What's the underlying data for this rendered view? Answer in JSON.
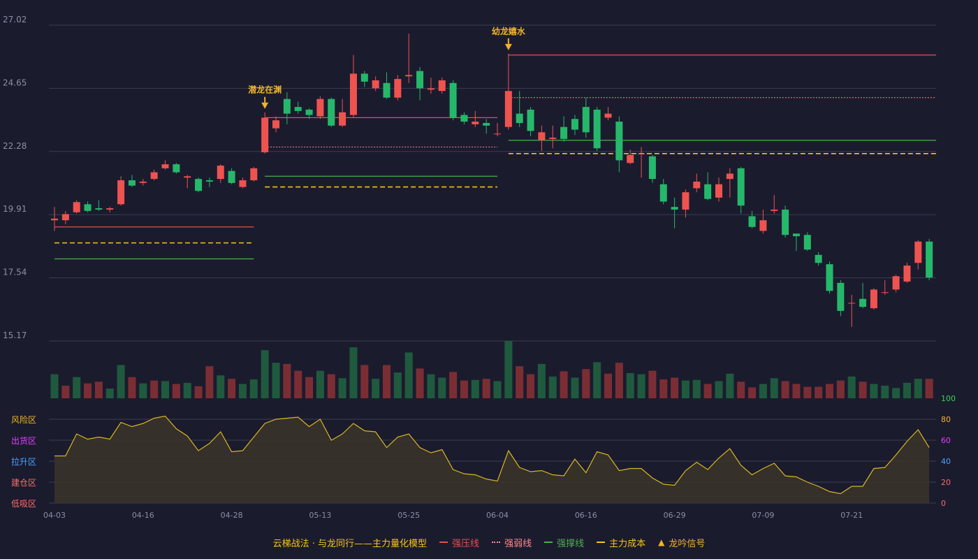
{
  "colors": {
    "background": "#1b1b2e",
    "up": "#ef5350",
    "down": "#26b86a",
    "resistance": "#e05252",
    "weak": "#ff8a8a",
    "support": "#4caf50",
    "cost": "#f5c518",
    "signal": "#f0b429",
    "axis_text": "#8c8fa3",
    "grid": "#3a3d52",
    "osc_line": "#d8b623"
  },
  "chart_data": {
    "type": "candlestick",
    "ylim": [
      15.17,
      27.02
    ],
    "price_ticks": [
      "27.02",
      "24.65",
      "22.28",
      "19.91",
      "17.54",
      "15.17"
    ],
    "date_ticks": [
      {
        "label": "04-03",
        "index": 0
      },
      {
        "label": "04-16",
        "index": 8
      },
      {
        "label": "04-28",
        "index": 16
      },
      {
        "label": "05-13",
        "index": 24
      },
      {
        "label": "05-25",
        "index": 32
      },
      {
        "label": "06-04",
        "index": 40
      },
      {
        "label": "06-16",
        "index": 48
      },
      {
        "label": "06-29",
        "index": 56
      },
      {
        "label": "07-09",
        "index": 64
      },
      {
        "label": "07-21",
        "index": 72
      }
    ],
    "candles": [
      [
        19.7,
        19.76,
        20.2,
        19.3
      ],
      [
        19.7,
        19.93,
        20.05,
        19.55
      ],
      [
        20.0,
        20.38,
        20.45,
        19.95
      ],
      [
        20.3,
        20.05,
        20.4,
        20.0
      ],
      [
        20.15,
        20.1,
        20.45,
        20.05
      ],
      [
        20.1,
        20.15,
        20.2,
        20.0
      ],
      [
        20.3,
        21.2,
        21.35,
        20.25
      ],
      [
        21.2,
        21.0,
        21.4,
        20.95
      ],
      [
        21.1,
        21.15,
        21.25,
        21.0
      ],
      [
        21.25,
        21.5,
        21.6,
        21.2
      ],
      [
        21.65,
        21.8,
        21.95,
        21.6
      ],
      [
        21.8,
        21.5,
        21.85,
        21.45
      ],
      [
        21.3,
        21.35,
        21.4,
        20.9
      ],
      [
        21.25,
        20.8,
        21.3,
        20.75
      ],
      [
        21.2,
        21.15,
        21.3,
        20.95
      ],
      [
        21.25,
        21.75,
        21.8,
        21.1
      ],
      [
        21.55,
        21.1,
        21.65,
        21.05
      ],
      [
        20.95,
        21.2,
        21.3,
        20.9
      ],
      [
        21.2,
        21.65,
        21.7,
        21.15
      ],
      [
        22.25,
        23.55,
        23.75,
        22.2
      ],
      [
        23.15,
        23.45,
        23.6,
        23.0
      ],
      [
        24.25,
        23.7,
        24.5,
        23.3
      ],
      [
        23.95,
        23.8,
        24.15,
        23.7
      ],
      [
        23.85,
        23.65,
        23.9,
        23.5
      ],
      [
        23.6,
        24.25,
        24.35,
        23.5
      ],
      [
        24.25,
        23.25,
        24.3,
        23.2
      ],
      [
        23.25,
        23.75,
        24.25,
        23.2
      ],
      [
        23.65,
        25.2,
        25.9,
        23.55
      ],
      [
        25.2,
        24.9,
        25.3,
        24.7
      ],
      [
        24.65,
        24.95,
        25.1,
        24.55
      ],
      [
        24.85,
        24.3,
        25.25,
        24.25
      ],
      [
        24.3,
        25.0,
        25.15,
        24.2
      ],
      [
        25.1,
        25.15,
        26.7,
        24.85
      ],
      [
        25.3,
        24.65,
        25.45,
        24.2
      ],
      [
        24.6,
        24.65,
        25.05,
        24.45
      ],
      [
        24.55,
        24.95,
        25.05,
        24.45
      ],
      [
        24.85,
        23.55,
        24.95,
        23.45
      ],
      [
        23.65,
        23.4,
        23.75,
        23.3
      ],
      [
        23.3,
        23.4,
        23.8,
        23.2
      ],
      [
        23.35,
        23.25,
        23.5,
        22.95
      ],
      [
        22.95,
        22.95,
        23.35,
        22.85
      ],
      [
        23.2,
        24.55,
        25.95,
        23.1
      ],
      [
        23.7,
        23.35,
        24.55,
        23.2
      ],
      [
        23.85,
        23.05,
        23.95,
        22.85
      ],
      [
        22.7,
        23.0,
        23.25,
        22.3
      ],
      [
        22.75,
        22.8,
        23.25,
        22.4
      ],
      [
        23.2,
        22.75,
        23.6,
        22.65
      ],
      [
        23.5,
        23.1,
        23.65,
        22.9
      ],
      [
        23.95,
        23.0,
        24.3,
        22.8
      ],
      [
        23.85,
        22.4,
        23.95,
        22.3
      ],
      [
        23.55,
        23.7,
        23.95,
        23.45
      ],
      [
        23.4,
        21.95,
        23.6,
        21.5
      ],
      [
        21.85,
        22.15,
        22.35,
        21.8
      ],
      [
        22.2,
        22.2,
        22.45,
        21.3
      ],
      [
        22.1,
        21.25,
        22.15,
        21.1
      ],
      [
        21.05,
        20.4,
        21.25,
        20.3
      ],
      [
        20.2,
        20.1,
        20.55,
        19.4
      ],
      [
        20.1,
        20.75,
        20.85,
        19.8
      ],
      [
        20.9,
        21.15,
        21.45,
        20.75
      ],
      [
        21.05,
        20.5,
        21.5,
        20.45
      ],
      [
        20.55,
        21.05,
        21.3,
        20.4
      ],
      [
        21.25,
        21.45,
        21.65,
        20.55
      ],
      [
        21.65,
        20.25,
        21.7,
        19.95
      ],
      [
        19.85,
        19.45,
        20.05,
        19.4
      ],
      [
        19.3,
        19.7,
        20.1,
        19.2
      ],
      [
        20.05,
        20.1,
        20.65,
        19.95
      ],
      [
        20.1,
        19.15,
        20.25,
        19.05
      ],
      [
        19.2,
        19.1,
        19.2,
        18.55
      ],
      [
        19.15,
        18.6,
        19.25,
        18.55
      ],
      [
        18.4,
        18.1,
        18.5,
        18.0
      ],
      [
        18.05,
        17.05,
        18.15,
        16.95
      ],
      [
        17.35,
        16.3,
        17.45,
        16.1
      ],
      [
        16.6,
        16.6,
        16.9,
        15.7
      ],
      [
        16.75,
        16.45,
        17.35,
        16.4
      ],
      [
        16.4,
        17.1,
        17.15,
        16.35
      ],
      [
        17.0,
        17.0,
        17.45,
        16.9
      ],
      [
        17.1,
        17.6,
        17.65,
        17.0
      ],
      [
        17.4,
        18.0,
        18.1,
        17.35
      ],
      [
        18.1,
        18.9,
        18.95,
        17.85
      ],
      [
        18.9,
        17.55,
        19.0,
        17.45
      ]
    ],
    "volume": [
      {
        "v": 0.42,
        "up": false
      },
      {
        "v": 0.22,
        "up": true
      },
      {
        "v": 0.37,
        "up": false
      },
      {
        "v": 0.26,
        "up": true
      },
      {
        "v": 0.29,
        "up": true
      },
      {
        "v": 0.17,
        "up": false
      },
      {
        "v": 0.58,
        "up": false
      },
      {
        "v": 0.37,
        "up": true
      },
      {
        "v": 0.26,
        "up": false
      },
      {
        "v": 0.31,
        "up": true
      },
      {
        "v": 0.3,
        "up": false
      },
      {
        "v": 0.25,
        "up": true
      },
      {
        "v": 0.27,
        "up": false
      },
      {
        "v": 0.21,
        "up": true
      },
      {
        "v": 0.56,
        "up": true
      },
      {
        "v": 0.4,
        "up": false
      },
      {
        "v": 0.34,
        "up": true
      },
      {
        "v": 0.25,
        "up": false
      },
      {
        "v": 0.33,
        "up": false
      },
      {
        "v": 0.84,
        "up": false
      },
      {
        "v": 0.62,
        "up": false
      },
      {
        "v": 0.6,
        "up": true
      },
      {
        "v": 0.48,
        "up": true
      },
      {
        "v": 0.37,
        "up": true
      },
      {
        "v": 0.48,
        "up": false
      },
      {
        "v": 0.42,
        "up": true
      },
      {
        "v": 0.35,
        "up": false
      },
      {
        "v": 0.89,
        "up": false
      },
      {
        "v": 0.58,
        "up": true
      },
      {
        "v": 0.34,
        "up": false
      },
      {
        "v": 0.58,
        "up": true
      },
      {
        "v": 0.45,
        "up": false
      },
      {
        "v": 0.8,
        "up": false
      },
      {
        "v": 0.52,
        "up": true
      },
      {
        "v": 0.42,
        "up": false
      },
      {
        "v": 0.36,
        "up": false
      },
      {
        "v": 0.46,
        "up": true
      },
      {
        "v": 0.31,
        "up": true
      },
      {
        "v": 0.32,
        "up": false
      },
      {
        "v": 0.34,
        "up": true
      },
      {
        "v": 0.3,
        "up": false
      },
      {
        "v": 1.0,
        "up": false
      },
      {
        "v": 0.56,
        "up": true
      },
      {
        "v": 0.42,
        "up": true
      },
      {
        "v": 0.6,
        "up": false
      },
      {
        "v": 0.38,
        "up": false
      },
      {
        "v": 0.47,
        "up": true
      },
      {
        "v": 0.36,
        "up": false
      },
      {
        "v": 0.51,
        "up": true
      },
      {
        "v": 0.63,
        "up": false
      },
      {
        "v": 0.43,
        "up": true
      },
      {
        "v": 0.62,
        "up": true
      },
      {
        "v": 0.44,
        "up": false
      },
      {
        "v": 0.42,
        "up": false
      },
      {
        "v": 0.48,
        "up": true
      },
      {
        "v": 0.33,
        "up": true
      },
      {
        "v": 0.36,
        "up": true
      },
      {
        "v": 0.31,
        "up": false
      },
      {
        "v": 0.32,
        "up": false
      },
      {
        "v": 0.25,
        "up": true
      },
      {
        "v": 0.3,
        "up": false
      },
      {
        "v": 0.43,
        "up": false
      },
      {
        "v": 0.29,
        "up": true
      },
      {
        "v": 0.19,
        "up": true
      },
      {
        "v": 0.25,
        "up": false
      },
      {
        "v": 0.35,
        "up": false
      },
      {
        "v": 0.3,
        "up": true
      },
      {
        "v": 0.25,
        "up": true
      },
      {
        "v": 0.2,
        "up": true
      },
      {
        "v": 0.2,
        "up": true
      },
      {
        "v": 0.25,
        "up": true
      },
      {
        "v": 0.31,
        "up": true
      },
      {
        "v": 0.38,
        "up": false
      },
      {
        "v": 0.29,
        "up": true
      },
      {
        "v": 0.25,
        "up": false
      },
      {
        "v": 0.22,
        "up": false
      },
      {
        "v": 0.18,
        "up": false
      },
      {
        "v": 0.27,
        "up": false
      },
      {
        "v": 0.34,
        "up": false
      },
      {
        "v": 0.34,
        "up": true
      }
    ],
    "oscillator": {
      "ylim": [
        0,
        100
      ],
      "ticks": [
        "100",
        "80",
        "60",
        "40",
        "20",
        "0"
      ],
      "zone_labels": [
        "风险区",
        "出货区",
        "拉升区",
        "建仓区",
        "低吸区"
      ],
      "values": [
        45,
        45,
        66,
        61,
        63,
        61,
        77,
        73,
        76,
        81,
        83,
        71,
        64,
        50,
        57,
        68,
        49,
        50,
        63,
        76,
        80,
        81,
        82,
        73,
        80,
        60,
        66,
        76,
        69,
        68,
        53,
        63,
        66,
        53,
        48,
        51,
        32,
        28,
        27,
        23,
        21,
        50,
        34,
        30,
        31,
        27,
        26,
        42,
        29,
        49,
        46,
        31,
        33,
        33,
        24,
        18,
        17,
        31,
        39,
        32,
        43,
        52,
        36,
        27,
        33,
        38,
        26,
        25,
        20,
        16,
        11,
        9,
        16,
        16,
        33,
        34,
        46,
        59,
        70,
        53
      ]
    },
    "overlays": [
      {
        "type": "strong_resistance",
        "from": 0,
        "to": 18,
        "value": 19.45
      },
      {
        "type": "main_cost",
        "from": 0,
        "to": 18,
        "value": 18.85
      },
      {
        "type": "strong_support",
        "from": 0,
        "to": 18,
        "value": 18.25
      },
      {
        "type": "strong_resistance",
        "from": 19,
        "to": 40,
        "value": 23.55
      },
      {
        "type": "weak_resistance",
        "from": 19,
        "to": 40,
        "value": 22.45
      },
      {
        "type": "strong_support",
        "from": 19,
        "to": 40,
        "value": 21.35
      },
      {
        "type": "main_cost",
        "from": 19,
        "to": 40,
        "value": 20.95
      },
      {
        "type": "strong_resistance",
        "from": 41,
        "to": 79,
        "value": 25.9
      },
      {
        "type": "weak_resistance",
        "from": 41,
        "to": 79,
        "value": 24.3
      },
      {
        "type": "strong_support",
        "from": 41,
        "to": 79,
        "value": 22.7
      },
      {
        "type": "main_cost",
        "from": 41,
        "to": 79,
        "value": 22.2
      }
    ],
    "signals": [
      {
        "index": 19,
        "label": "潜龙在渊"
      },
      {
        "index": 41,
        "label": "幼龙嬉水"
      }
    ]
  },
  "legend": {
    "title": "云梯战法 · 与龙同行——主力量化模型",
    "items": [
      {
        "label": "强压线",
        "color": "#e05252",
        "style": "solid"
      },
      {
        "label": "强弱线",
        "color": "#ff8a8a",
        "style": "dotted"
      },
      {
        "label": "强撑线",
        "color": "#4caf50",
        "style": "solid"
      },
      {
        "label": "主力成本",
        "color": "#f5c518",
        "style": "dashed"
      },
      {
        "label": "龙吟信号",
        "color": "#f0b429",
        "style": "triangle"
      }
    ]
  }
}
